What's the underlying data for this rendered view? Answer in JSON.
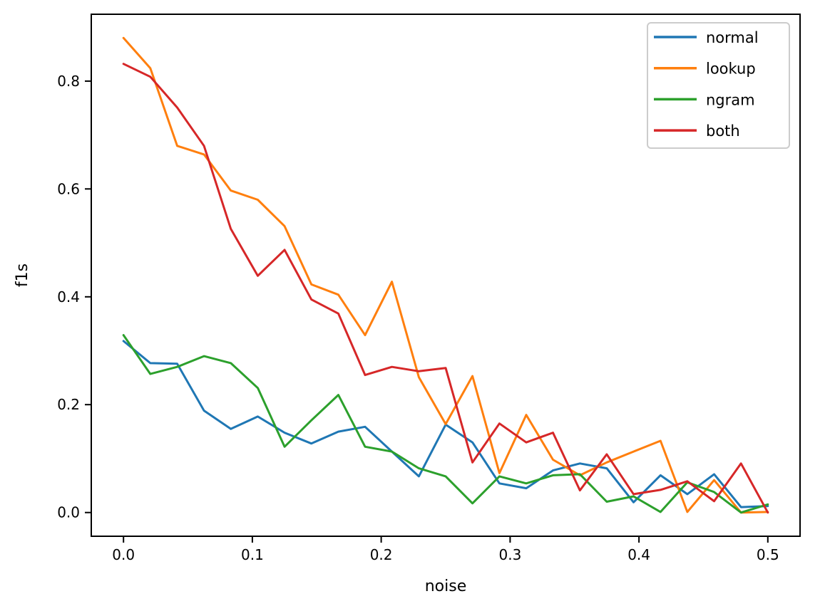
{
  "figure": {
    "background": "#ffffff",
    "spine_color": "#000000",
    "legend_border_color": "#cccccc"
  },
  "chart_data": {
    "type": "line",
    "title": "",
    "xlabel": "noise",
    "ylabel": "f1s",
    "grid": false,
    "legend_position": "upper right",
    "xlim": [
      -0.025,
      0.525
    ],
    "ylim": [
      -0.044,
      0.924
    ],
    "x_ticks": [
      0.0,
      0.1,
      0.2,
      0.3,
      0.4,
      0.5
    ],
    "x_tick_labels": [
      "0.0",
      "0.1",
      "0.2",
      "0.3",
      "0.4",
      "0.5"
    ],
    "y_ticks": [
      0.0,
      0.2,
      0.4,
      0.6,
      0.8
    ],
    "y_tick_labels": [
      "0.0",
      "0.2",
      "0.4",
      "0.6",
      "0.8"
    ],
    "x": [
      0.0,
      0.0208,
      0.0417,
      0.0625,
      0.0833,
      0.1042,
      0.125,
      0.1458,
      0.1667,
      0.1875,
      0.2083,
      0.2292,
      0.25,
      0.2708,
      0.2917,
      0.3125,
      0.3333,
      0.3542,
      0.375,
      0.3958,
      0.4167,
      0.4375,
      0.4583,
      0.4792,
      0.5
    ],
    "series": [
      {
        "name": "normal",
        "color": "#1f77b4",
        "values": [
          0.318,
          0.277,
          0.276,
          0.189,
          0.155,
          0.178,
          0.148,
          0.128,
          0.15,
          0.159,
          0.113,
          0.067,
          0.163,
          0.13,
          0.054,
          0.045,
          0.078,
          0.091,
          0.082,
          0.019,
          0.069,
          0.034,
          0.071,
          0.01,
          0.012
        ]
      },
      {
        "name": "lookup",
        "color": "#ff7f0e",
        "values": [
          0.88,
          0.824,
          0.68,
          0.664,
          0.597,
          0.58,
          0.531,
          0.423,
          0.404,
          0.329,
          0.428,
          0.251,
          0.164,
          0.253,
          0.073,
          0.181,
          0.098,
          0.069,
          0.093,
          0.113,
          0.133,
          0.001,
          0.06,
          0.0,
          0.001
        ]
      },
      {
        "name": "ngram",
        "color": "#2ca02c",
        "values": [
          0.329,
          0.257,
          0.27,
          0.29,
          0.277,
          0.231,
          0.122,
          0.171,
          0.218,
          0.122,
          0.113,
          0.082,
          0.067,
          0.017,
          0.067,
          0.054,
          0.069,
          0.071,
          0.02,
          0.03,
          0.001,
          0.056,
          0.038,
          0.0,
          0.015
        ]
      },
      {
        "name": "both",
        "color": "#d62728",
        "values": [
          0.832,
          0.808,
          0.751,
          0.68,
          0.526,
          0.439,
          0.487,
          0.395,
          0.369,
          0.255,
          0.27,
          0.262,
          0.268,
          0.093,
          0.165,
          0.13,
          0.148,
          0.041,
          0.108,
          0.034,
          0.042,
          0.058,
          0.021,
          0.091,
          0.0
        ]
      }
    ]
  }
}
